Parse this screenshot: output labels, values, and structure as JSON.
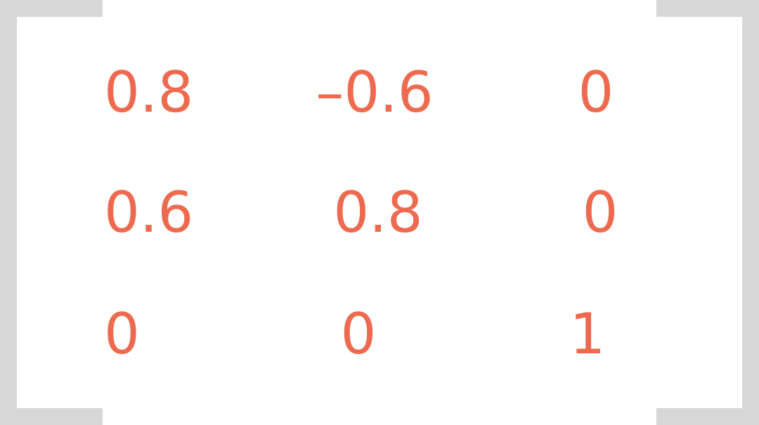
{
  "matrix": {
    "rows": [
      [
        "0.8",
        "–0.6",
        "0"
      ],
      [
        "0.6",
        "0.8",
        "0"
      ],
      [
        "0",
        "0",
        "1"
      ]
    ],
    "text_color": "#ee6a4f",
    "bracket_color": "#d7d7d7"
  }
}
